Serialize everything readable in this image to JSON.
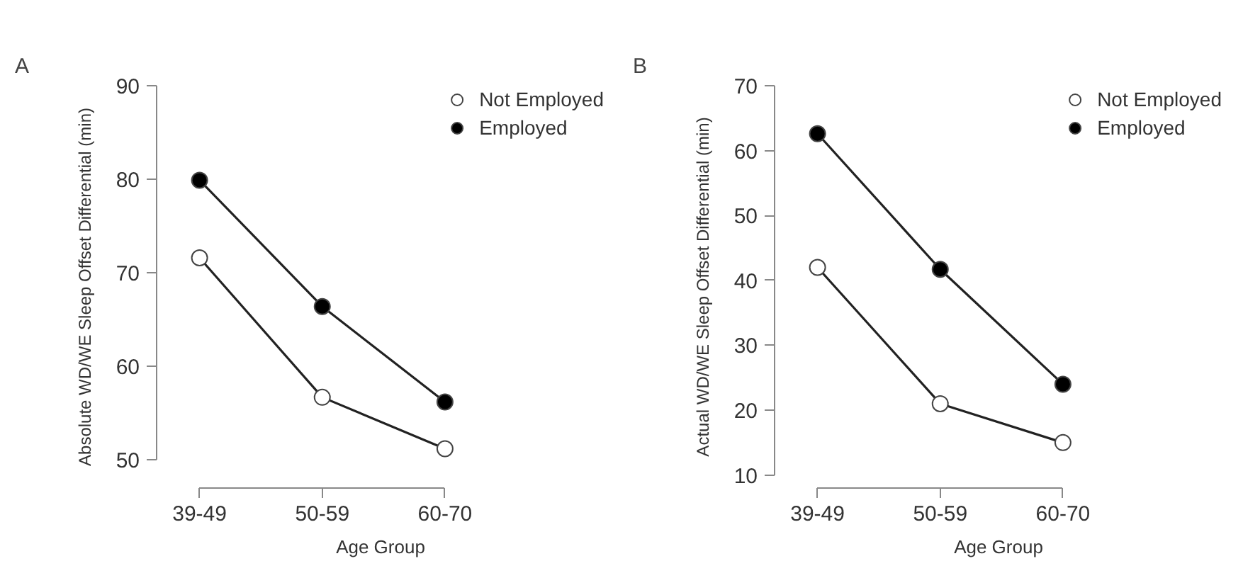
{
  "chart_data": [
    {
      "type": "line",
      "title": "A",
      "xlabel": "Age Group",
      "ylabel": "Absolute WD/WE Sleep Offset Differential (min)",
      "categories": [
        "39-49",
        "50-59",
        "60-70"
      ],
      "ylim": [
        47,
        90
      ],
      "yticks": [
        50,
        60,
        70,
        80,
        90
      ],
      "marker": "circle",
      "legend": "top right",
      "grid": false,
      "series": [
        {
          "name": "Not Employed",
          "color": "#ffffff",
          "values": [
            71.6,
            56.7,
            51.2
          ]
        },
        {
          "name": "Employed",
          "color": "#000000",
          "values": [
            79.9,
            66.4,
            56.2
          ]
        }
      ]
    },
    {
      "type": "line",
      "title": "B",
      "xlabel": "Age Group",
      "ylabel": "Actual WD/WE Sleep Offset Differential (min)",
      "categories": [
        "39-49",
        "50-59",
        "60-70"
      ],
      "ylim": [
        8,
        70
      ],
      "yticks": [
        10,
        20,
        30,
        40,
        50,
        60,
        70
      ],
      "marker": "circle",
      "legend": "top right",
      "grid": false,
      "series": [
        {
          "name": "Not Employed",
          "color": "#ffffff",
          "values": [
            42,
            21,
            15
          ]
        },
        {
          "name": "Employed",
          "color": "#000000",
          "values": [
            62.6,
            41.7,
            24
          ]
        }
      ]
    }
  ]
}
